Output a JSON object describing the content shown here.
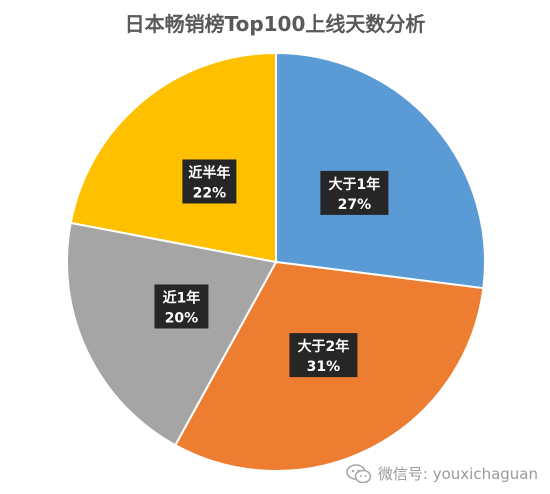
{
  "chart_data": {
    "type": "pie",
    "title": "日本畅销榜Top100上线天数分析",
    "start_angle_deg": 0,
    "direction": "clockwise",
    "slices": [
      {
        "label": "大于1年",
        "value": 27,
        "value_label": "27%",
        "color": "#5B9BD5"
      },
      {
        "label": "大于2年",
        "value": 31,
        "value_label": "31%",
        "color": "#ED7D31"
      },
      {
        "label": "近1年",
        "value": 20,
        "value_label": "20%",
        "color": "#A5A5A5"
      },
      {
        "label": "近半年",
        "value": 22,
        "value_label": "22%",
        "color": "#FFC000"
      }
    ],
    "data_label_style": {
      "background": "#262626",
      "text_color": "#FFFFFF"
    },
    "legend": "none"
  },
  "watermark": {
    "icon": "wechat-icon",
    "text": "微信号: youxichaguan"
  }
}
